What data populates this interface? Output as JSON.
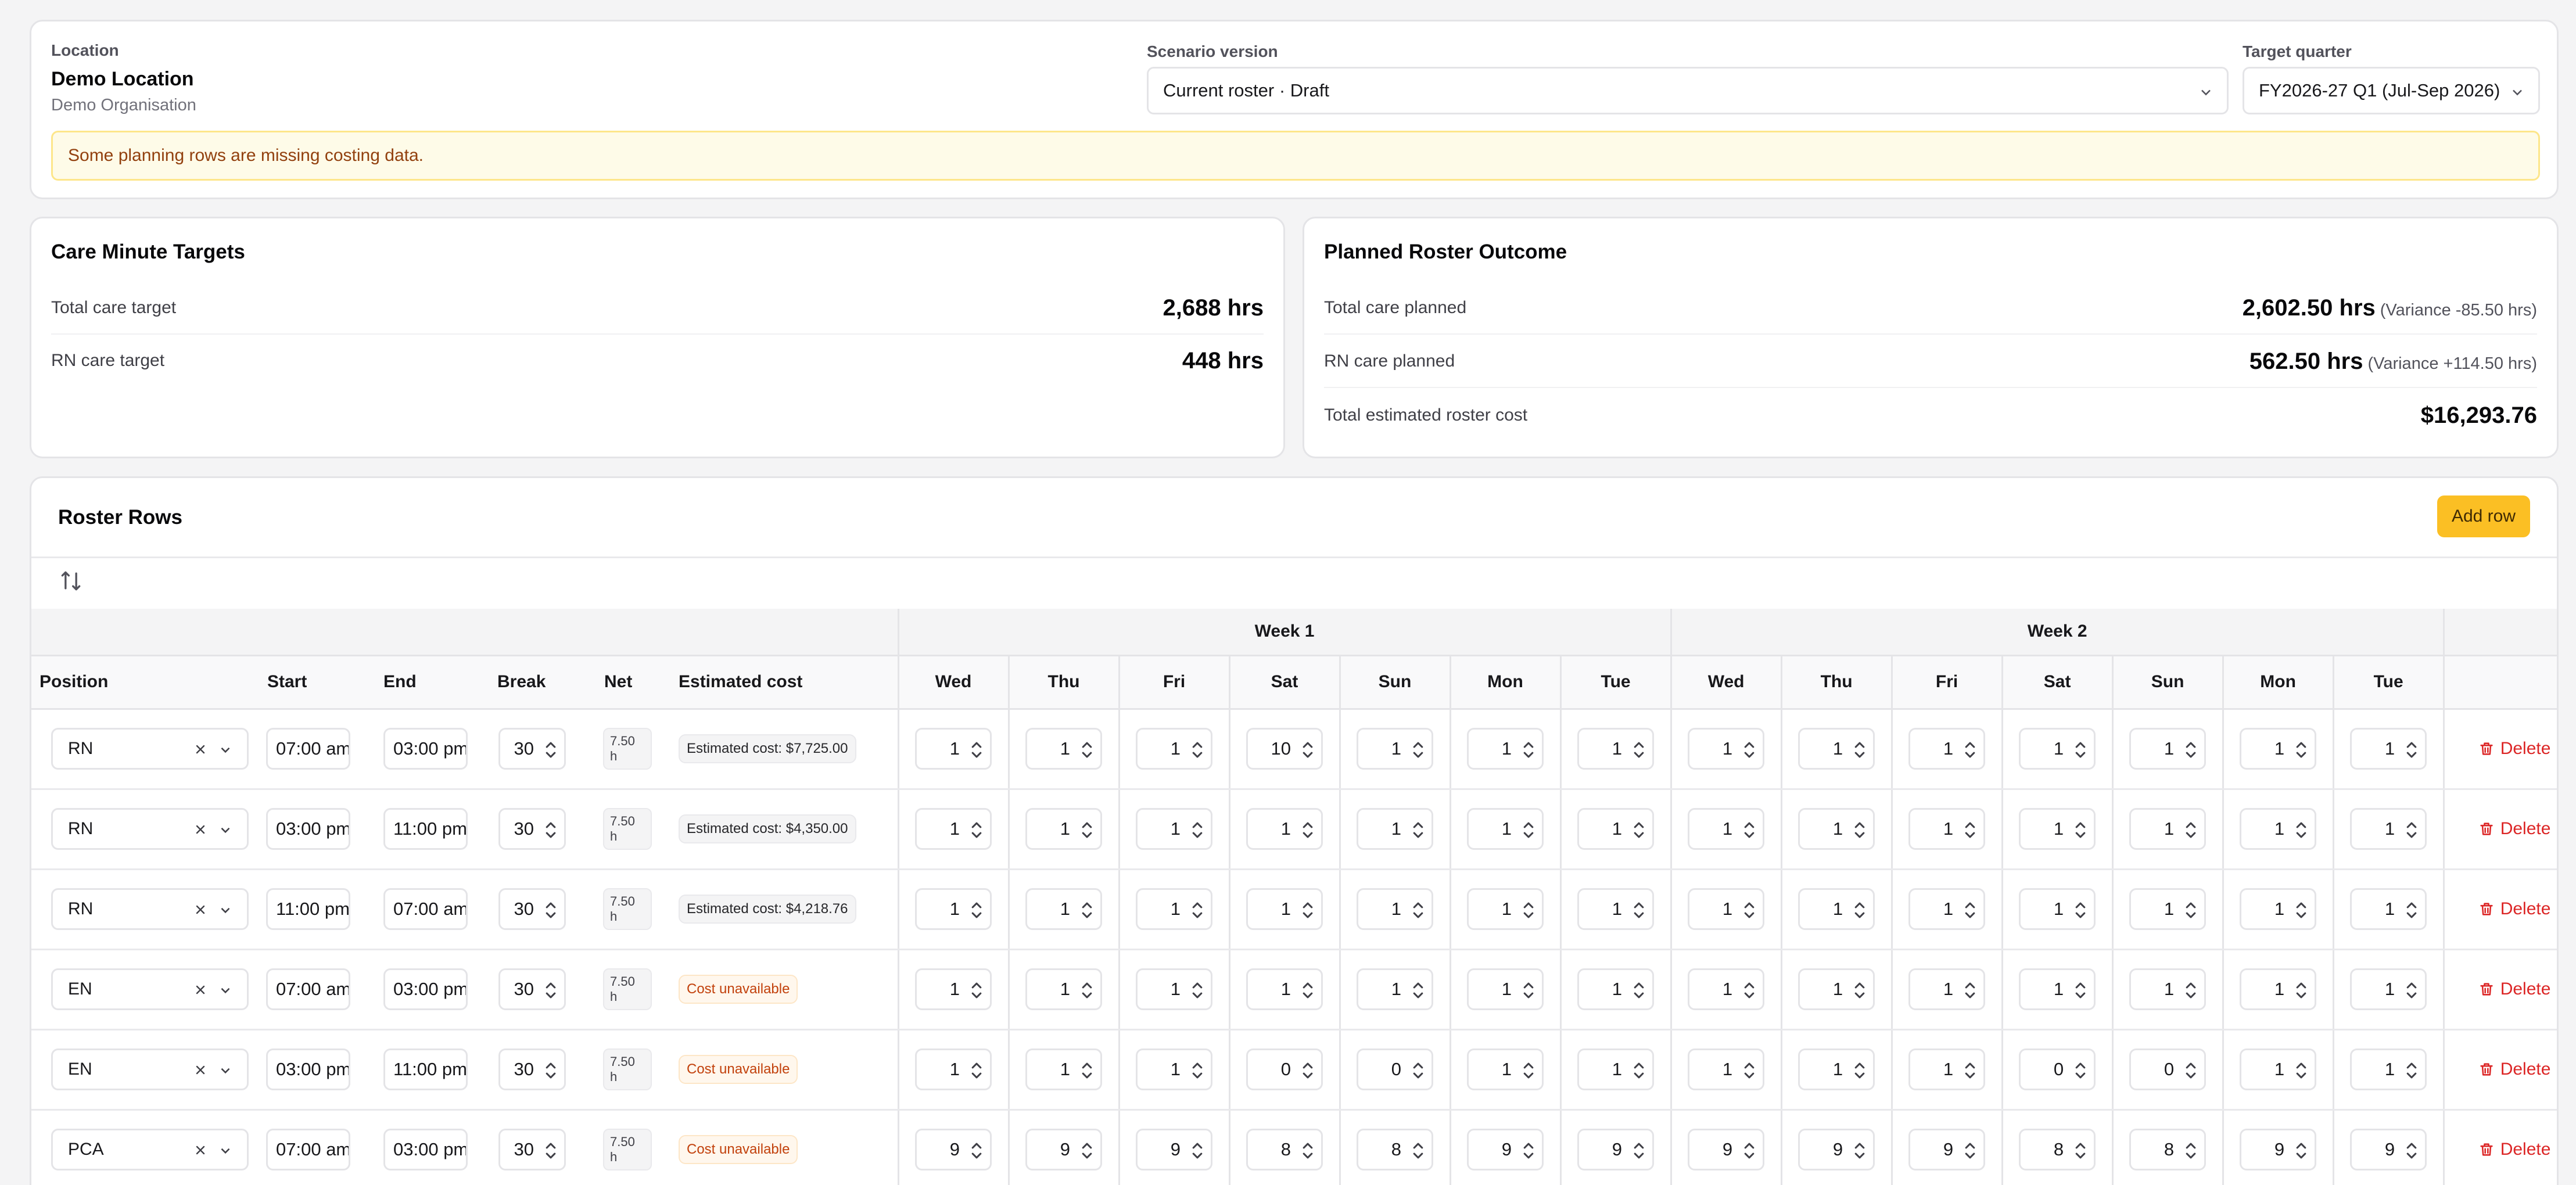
{
  "location": {
    "label": "Location",
    "name": "Demo Location",
    "organisation": "Demo Organisation"
  },
  "scenario": {
    "label": "Scenario version",
    "value": "Current roster · Draft"
  },
  "quarter": {
    "label": "Target quarter",
    "value": "FY2026-27 Q1 (Jul-Sep 2026)"
  },
  "warning": "Some planning rows are missing costing data.",
  "targets": {
    "title": "Care Minute Targets",
    "rows": [
      {
        "label": "Total care target",
        "value": "2,688 hrs"
      },
      {
        "label": "RN care target",
        "value": "448 hrs"
      }
    ]
  },
  "outcome": {
    "title": "Planned Roster Outcome",
    "rows": [
      {
        "label": "Total care planned",
        "value": "2,602.50 hrs",
        "variance": "(Variance -85.50 hrs)"
      },
      {
        "label": "RN care planned",
        "value": "562.50 hrs",
        "variance": "(Variance +114.50 hrs)"
      },
      {
        "label": "Total estimated roster cost",
        "value": "$16,293.76",
        "variance": ""
      }
    ]
  },
  "roster": {
    "title": "Roster Rows",
    "add_label": "Add row",
    "weeks": [
      "Week 1",
      "Week 2"
    ],
    "columns": [
      "Position",
      "Start",
      "End",
      "Break",
      "Net",
      "Estimated cost"
    ],
    "days": [
      "Wed",
      "Thu",
      "Fri",
      "Sat",
      "Sun",
      "Mon",
      "Tue",
      "Wed",
      "Thu",
      "Fri",
      "Sat",
      "Sun",
      "Mon",
      "Tue"
    ],
    "delete_label": "Delete",
    "rows": [
      {
        "position": "RN",
        "start": "07:00 am",
        "end": "03:00 pm",
        "break": "30",
        "net": "7.50 h",
        "cost": "Estimated cost: $7,725.00",
        "cost_available": true,
        "counts": [
          "1",
          "1",
          "1",
          "10",
          "1",
          "1",
          "1",
          "1",
          "1",
          "1",
          "1",
          "1",
          "1",
          "1"
        ]
      },
      {
        "position": "RN",
        "start": "03:00 pm",
        "end": "11:00 pm",
        "break": "30",
        "net": "7.50 h",
        "cost": "Estimated cost: $4,350.00",
        "cost_available": true,
        "counts": [
          "1",
          "1",
          "1",
          "1",
          "1",
          "1",
          "1",
          "1",
          "1",
          "1",
          "1",
          "1",
          "1",
          "1"
        ]
      },
      {
        "position": "RN",
        "start": "11:00 pm",
        "end": "07:00 am",
        "break": "30",
        "net": "7.50 h",
        "cost": "Estimated cost: $4,218.76",
        "cost_available": true,
        "counts": [
          "1",
          "1",
          "1",
          "1",
          "1",
          "1",
          "1",
          "1",
          "1",
          "1",
          "1",
          "1",
          "1",
          "1"
        ]
      },
      {
        "position": "EN",
        "start": "07:00 am",
        "end": "03:00 pm",
        "break": "30",
        "net": "7.50 h",
        "cost": "Cost unavailable",
        "cost_available": false,
        "counts": [
          "1",
          "1",
          "1",
          "1",
          "1",
          "1",
          "1",
          "1",
          "1",
          "1",
          "1",
          "1",
          "1",
          "1"
        ]
      },
      {
        "position": "EN",
        "start": "03:00 pm",
        "end": "11:00 pm",
        "break": "30",
        "net": "7.50 h",
        "cost": "Cost unavailable",
        "cost_available": false,
        "counts": [
          "1",
          "1",
          "1",
          "0",
          "0",
          "1",
          "1",
          "1",
          "1",
          "1",
          "0",
          "0",
          "1",
          "1"
        ]
      },
      {
        "position": "PCA",
        "start": "07:00 am",
        "end": "03:00 pm",
        "break": "30",
        "net": "7.50 h",
        "cost": "Cost unavailable",
        "cost_available": false,
        "counts": [
          "9",
          "9",
          "9",
          "8",
          "8",
          "9",
          "9",
          "9",
          "9",
          "9",
          "8",
          "8",
          "9",
          "9"
        ]
      }
    ]
  },
  "colors": {
    "accent": "#fbbf24",
    "danger": "#dc2626",
    "warning_bg": "#fefbe8",
    "warning_text": "#92400e"
  }
}
